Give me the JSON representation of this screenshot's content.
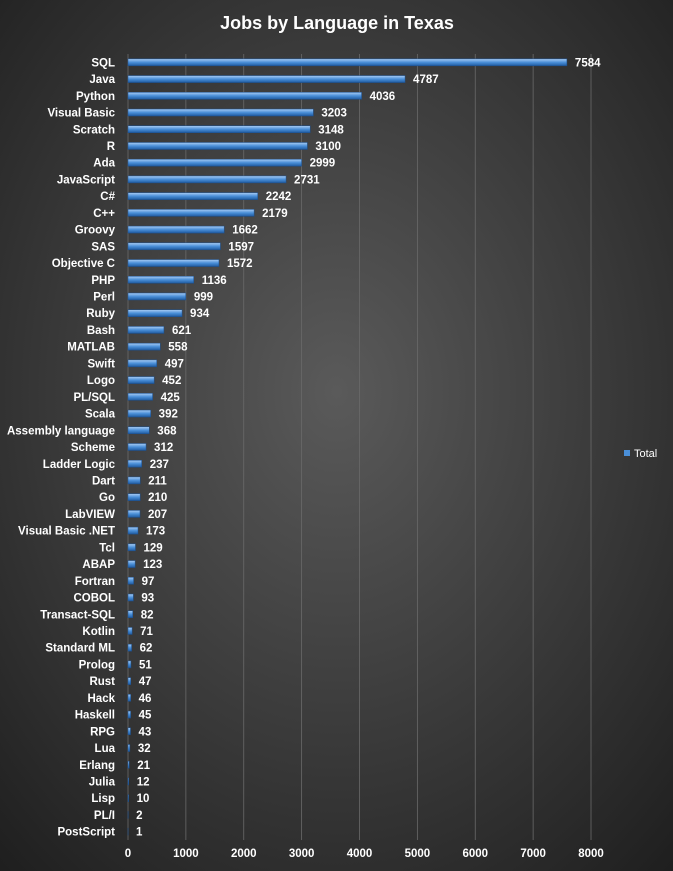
{
  "chart_data": {
    "type": "hbar",
    "title": "Jobs by Language  in Texas",
    "categories": [
      "SQL",
      "Java",
      "Python",
      "Visual Basic",
      "Scratch",
      "R",
      "Ada",
      "JavaScript",
      "C#",
      "C++",
      "Groovy",
      "SAS",
      "Objective C",
      "PHP",
      "Perl",
      "Ruby",
      "Bash",
      "MATLAB",
      "Swift",
      "Logo",
      "PL/SQL",
      "Scala",
      "Assembly language",
      "Scheme",
      "Ladder Logic",
      "Dart",
      "Go",
      "LabVIEW",
      "Visual Basic .NET",
      "Tcl",
      "ABAP",
      "Fortran",
      "COBOL",
      "Transact-SQL",
      "Kotlin",
      "Standard ML",
      "Prolog",
      "Rust",
      "Hack",
      "Haskell",
      "RPG",
      "Lua",
      "Erlang",
      "Julia",
      "Lisp",
      "PL/I",
      "PostScript"
    ],
    "series": [
      {
        "name": "Total",
        "color": "#4a8fd8",
        "values": [
          7584,
          4787,
          4036,
          3203,
          3148,
          3100,
          2999,
          2731,
          2242,
          2179,
          1662,
          1597,
          1572,
          1136,
          999,
          934,
          621,
          558,
          497,
          452,
          425,
          392,
          368,
          312,
          237,
          211,
          210,
          207,
          173,
          129,
          123,
          97,
          93,
          82,
          71,
          62,
          51,
          47,
          46,
          45,
          43,
          32,
          21,
          12,
          10,
          2,
          1
        ]
      }
    ],
    "xlim": [
      0,
      8000
    ],
    "xticks": [
      0,
      1000,
      2000,
      3000,
      4000,
      5000,
      6000,
      7000,
      8000
    ],
    "grid": true,
    "legend": "right"
  }
}
